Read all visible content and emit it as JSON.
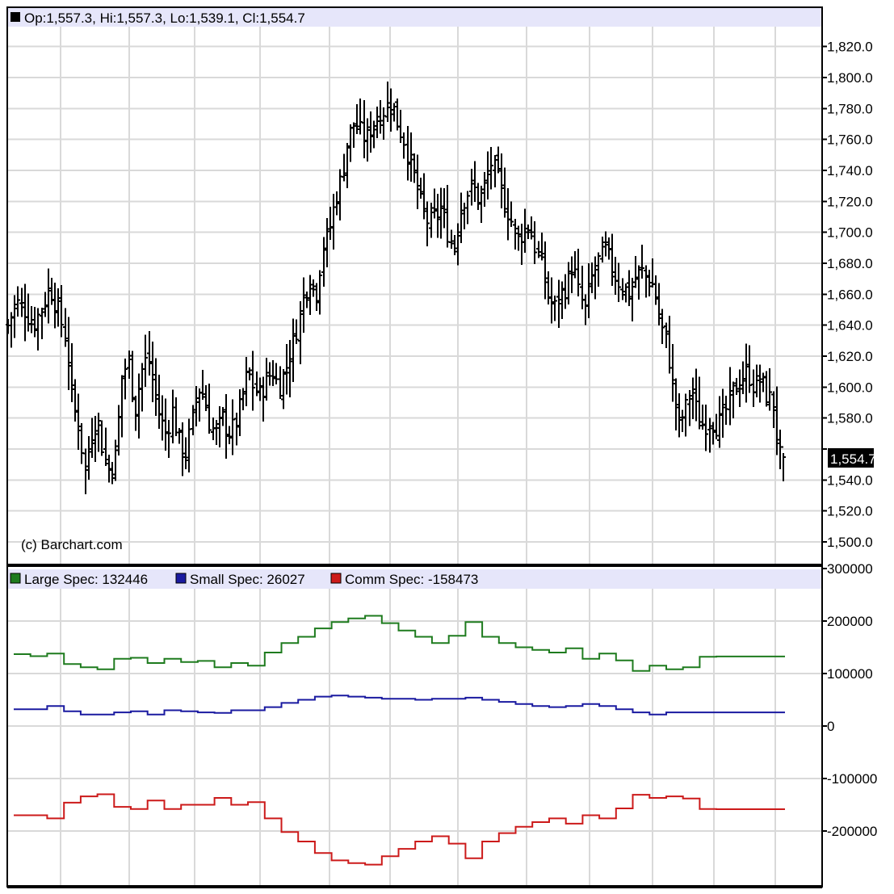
{
  "chart_data": [
    {
      "type": "ohlc",
      "panel": "price",
      "ohlc_readout": {
        "open_label": "Op:",
        "open": "1,557.3",
        "high_label": "Hi:",
        "high": "1,557.3",
        "low_label": "Lo:",
        "low": "1,539.1",
        "close_label": "Cl:",
        "close": "1,554.7"
      },
      "readout_text": "Op:1,557.3, Hi:1,557.3, Lo:1,539.1, Cl:1,554.7",
      "last_value_label": "1,554.7",
      "last_value": 1554.7,
      "copyright": "(c) Barchart.com",
      "ylim": [
        1490,
        1830
      ],
      "y_ticks": [
        1500,
        1520,
        1540,
        1560,
        1580,
        1600,
        1620,
        1640,
        1660,
        1680,
        1700,
        1720,
        1740,
        1760,
        1780,
        1800,
        1820
      ],
      "y_tick_labels": [
        "1,500.0",
        "1,520.0",
        "1,540.0",
        "",
        "1,580.0",
        "1,600.0",
        "1,620.0",
        "1,640.0",
        "1,660.0",
        "1,680.0",
        "1,700.0",
        "1,720.0",
        "1,740.0",
        "1,760.0",
        "1,780.0",
        "1,800.0",
        "1,820.0"
      ],
      "grid": true,
      "close_path": [
        [
          0,
          1640
        ],
        [
          8,
          1655
        ],
        [
          16,
          1650
        ],
        [
          24,
          1640
        ],
        [
          32,
          1650
        ],
        [
          40,
          1665
        ],
        [
          48,
          1650
        ],
        [
          56,
          1630
        ],
        [
          62,
          1590
        ],
        [
          68,
          1575
        ],
        [
          74,
          1545
        ],
        [
          80,
          1570
        ],
        [
          86,
          1580
        ],
        [
          92,
          1555
        ],
        [
          98,
          1545
        ],
        [
          104,
          1560
        ],
        [
          110,
          1610
        ],
        [
          116,
          1615
        ],
        [
          122,
          1585
        ],
        [
          128,
          1610
        ],
        [
          134,
          1620
        ],
        [
          140,
          1600
        ],
        [
          146,
          1580
        ],
        [
          152,
          1570
        ],
        [
          158,
          1585
        ],
        [
          164,
          1565
        ],
        [
          170,
          1555
        ],
        [
          176,
          1575
        ],
        [
          182,
          1600
        ],
        [
          188,
          1595
        ],
        [
          194,
          1575
        ],
        [
          200,
          1570
        ],
        [
          206,
          1580
        ],
        [
          212,
          1570
        ],
        [
          218,
          1575
        ],
        [
          224,
          1590
        ],
        [
          230,
          1610
        ],
        [
          236,
          1600
        ],
        [
          242,
          1595
        ],
        [
          248,
          1605
        ],
        [
          254,
          1610
        ],
        [
          260,
          1600
        ],
        [
          266,
          1610
        ],
        [
          272,
          1625
        ],
        [
          278,
          1640
        ],
        [
          284,
          1660
        ],
        [
          290,
          1670
        ],
        [
          296,
          1660
        ],
        [
          302,
          1690
        ],
        [
          308,
          1700
        ],
        [
          314,
          1720
        ],
        [
          320,
          1735
        ],
        [
          326,
          1760
        ],
        [
          332,
          1770
        ],
        [
          338,
          1765
        ],
        [
          344,
          1760
        ],
        [
          350,
          1770
        ],
        [
          356,
          1775
        ],
        [
          362,
          1780
        ],
        [
          368,
          1785
        ],
        [
          374,
          1770
        ],
        [
          380,
          1760
        ],
        [
          386,
          1745
        ],
        [
          392,
          1730
        ],
        [
          398,
          1715
        ],
        [
          404,
          1705
        ],
        [
          410,
          1710
        ],
        [
          416,
          1715
        ],
        [
          422,
          1700
        ],
        [
          428,
          1690
        ],
        [
          434,
          1715
        ],
        [
          440,
          1725
        ],
        [
          446,
          1730
        ],
        [
          452,
          1720
        ],
        [
          458,
          1730
        ],
        [
          464,
          1745
        ],
        [
          470,
          1735
        ],
        [
          476,
          1720
        ],
        [
          482,
          1710
        ],
        [
          488,
          1695
        ],
        [
          494,
          1700
        ],
        [
          500,
          1705
        ],
        [
          506,
          1690
        ],
        [
          512,
          1680
        ],
        [
          518,
          1660
        ],
        [
          524,
          1650
        ],
        [
          530,
          1660
        ],
        [
          536,
          1665
        ],
        [
          542,
          1680
        ],
        [
          548,
          1660
        ],
        [
          554,
          1650
        ],
        [
          560,
          1670
        ],
        [
          566,
          1680
        ],
        [
          572,
          1690
        ],
        [
          578,
          1680
        ],
        [
          584,
          1670
        ],
        [
          590,
          1665
        ],
        [
          596,
          1660
        ],
        [
          602,
          1670
        ],
        [
          608,
          1675
        ],
        [
          614,
          1670
        ],
        [
          620,
          1665
        ],
        [
          626,
          1640
        ],
        [
          632,
          1630
        ],
        [
          638,
          1600
        ],
        [
          644,
          1575
        ],
        [
          650,
          1585
        ],
        [
          656,
          1600
        ],
        [
          662,
          1580
        ],
        [
          668,
          1575
        ],
        [
          674,
          1580
        ],
        [
          680,
          1575
        ],
        [
          686,
          1580
        ],
        [
          692,
          1590
        ],
        [
          698,
          1600
        ],
        [
          704,
          1605
        ],
        [
          710,
          1610
        ],
        [
          716,
          1600
        ],
        [
          722,
          1605
        ],
        [
          728,
          1595
        ],
        [
          734,
          1590
        ],
        [
          740,
          1555
        ],
        [
          744,
          1554.7
        ]
      ]
    },
    {
      "type": "line",
      "panel": "cot",
      "step": true,
      "ylim": [
        -300000,
        300000
      ],
      "y_ticks": [
        300000,
        200000,
        100000,
        0,
        -100000,
        -200000
      ],
      "y_tick_labels": [
        "300000",
        "200000",
        "100000",
        "0",
        "-100000",
        "-200000"
      ],
      "grid": true,
      "x_steps": [
        0,
        16,
        32,
        48,
        64,
        80,
        96,
        112,
        128,
        144,
        160,
        176,
        192,
        208,
        224,
        240,
        256,
        272,
        288,
        304,
        320,
        336,
        352,
        368,
        384,
        400,
        416,
        432,
        448,
        464,
        480,
        496,
        512,
        528,
        544,
        560,
        576,
        592,
        608,
        624,
        640,
        656,
        672,
        688,
        704,
        720,
        736
      ],
      "series": [
        {
          "name": "Large Spec",
          "legend_label": "Large Spec: 132446",
          "color": "#1e7b1e",
          "values": [
            137000,
            133000,
            138000,
            118000,
            112000,
            108000,
            128000,
            130000,
            120000,
            128000,
            122000,
            124000,
            112000,
            120000,
            115000,
            140000,
            158000,
            170000,
            186000,
            198000,
            205000,
            210000,
            196000,
            182000,
            170000,
            158000,
            172000,
            198000,
            170000,
            158000,
            150000,
            145000,
            140000,
            148000,
            128000,
            138000,
            125000,
            105000,
            115000,
            108000,
            112000,
            132000,
            132446,
            132446,
            132446,
            132446,
            132446
          ]
        },
        {
          "name": "Small Spec",
          "legend_label": "Small Spec: 26027",
          "color": "#1a1aa0",
          "values": [
            32000,
            32000,
            38000,
            28000,
            22000,
            22000,
            26000,
            28000,
            22000,
            30000,
            28000,
            26000,
            25000,
            30000,
            30000,
            36000,
            44000,
            50000,
            56000,
            58000,
            56000,
            54000,
            52000,
            52000,
            50000,
            52000,
            52000,
            54000,
            50000,
            46000,
            42000,
            38000,
            36000,
            38000,
            42000,
            38000,
            32000,
            26000,
            22000,
            26027,
            26027,
            26027,
            26027,
            26027,
            26027,
            26027,
            26027
          ]
        },
        {
          "name": "Comm Spec",
          "legend_label": "Comm Spec: -158473",
          "color": "#cc1a1a",
          "values": [
            -170000,
            -170000,
            -176000,
            -146000,
            -134000,
            -130000,
            -154000,
            -158000,
            -142000,
            -158000,
            -150000,
            -150000,
            -137000,
            -150000,
            -145000,
            -176000,
            -202000,
            -220000,
            -242000,
            -256000,
            -261000,
            -264000,
            -248000,
            -234000,
            -220000,
            -210000,
            -224000,
            -252000,
            -220000,
            -204000,
            -192000,
            -183000,
            -176000,
            -186000,
            -170000,
            -176000,
            -157000,
            -131000,
            -137000,
            -134000,
            -138000,
            -158000,
            -158473,
            -158473,
            -158473,
            -158473,
            -158473
          ]
        }
      ]
    }
  ]
}
